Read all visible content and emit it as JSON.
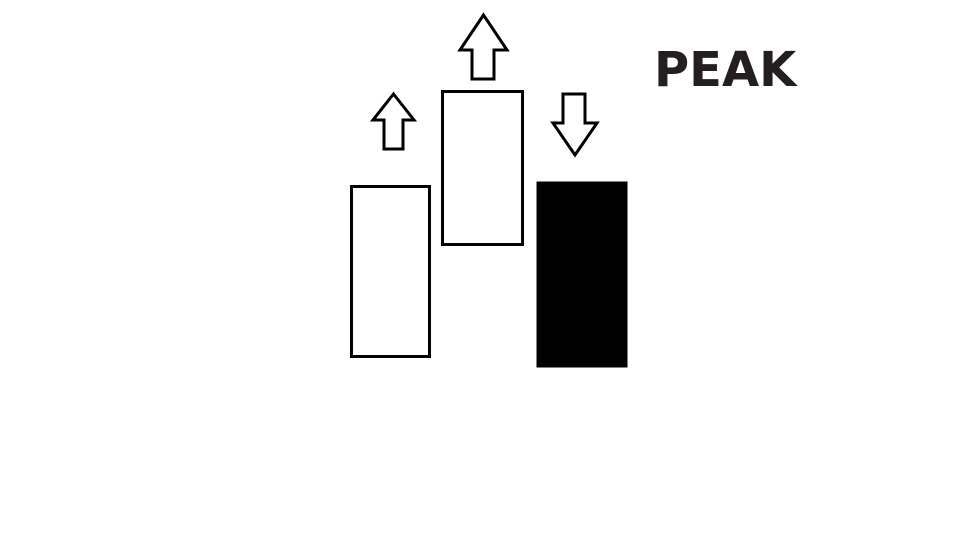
{
  "title": "PEAK",
  "colors": {
    "stroke": "#000000",
    "bullish_fill": "#ffffff",
    "bearish_fill": "#000000",
    "text": "#231f20"
  },
  "candles": [
    {
      "kind": "bullish",
      "arrow": "up-arrow-icon"
    },
    {
      "kind": "bullish",
      "arrow": "up-arrow-icon"
    },
    {
      "kind": "bearish",
      "arrow": "down-arrow-icon"
    }
  ]
}
